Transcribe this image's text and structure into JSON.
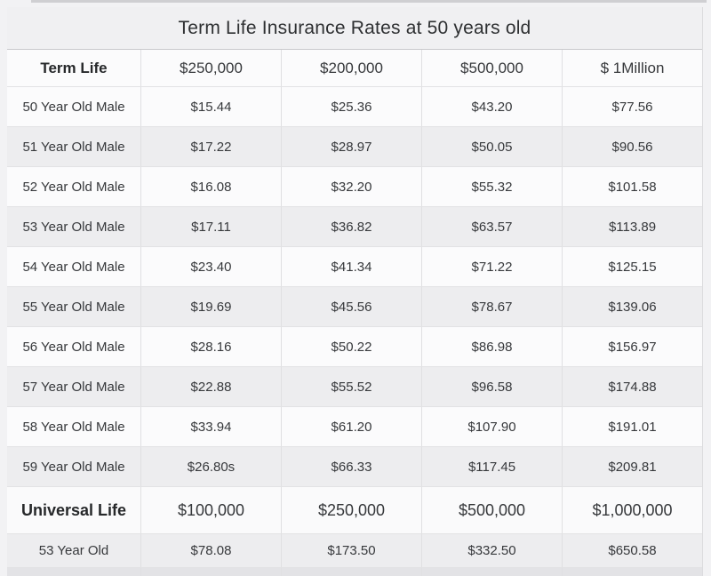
{
  "title": "Term Life Insurance Rates at 50 years old",
  "term_table": {
    "header": {
      "label": "Term Life",
      "columns": [
        "$250,000",
        "$200,000",
        "$500,000",
        "$ 1Million"
      ]
    },
    "rows": [
      {
        "label": "50 Year Old Male",
        "values": [
          "$15.44",
          "$25.36",
          "$43.20",
          "$77.56"
        ]
      },
      {
        "label": "51 Year Old Male",
        "values": [
          "$17.22",
          "$28.97",
          "$50.05",
          "$90.56"
        ]
      },
      {
        "label": "52 Year Old Male",
        "values": [
          "$16.08",
          "$32.20",
          "$55.32",
          "$101.58"
        ]
      },
      {
        "label": "53 Year Old Male",
        "values": [
          "$17.11",
          "$36.82",
          "$63.57",
          "$113.89"
        ]
      },
      {
        "label": "54 Year Old Male",
        "values": [
          "$23.40",
          "$41.34",
          "$71.22",
          "$125.15"
        ]
      },
      {
        "label": "55 Year Old Male",
        "values": [
          "$19.69",
          "$45.56",
          "$78.67",
          "$139.06"
        ]
      },
      {
        "label": "56 Year Old Male",
        "values": [
          "$28.16",
          "$50.22",
          "$86.98",
          "$156.97"
        ]
      },
      {
        "label": "57 Year Old Male",
        "values": [
          "$22.88",
          "$55.52",
          "$96.58",
          "$174.88"
        ]
      },
      {
        "label": "58 Year Old Male",
        "values": [
          "$33.94",
          "$61.20",
          "$107.90",
          "$191.01"
        ]
      },
      {
        "label": "59 Year Old Male",
        "values": [
          "$26.80s",
          "$66.33",
          "$117.45",
          "$209.81"
        ]
      }
    ]
  },
  "universal_table": {
    "header": {
      "label": "Universal Life",
      "columns": [
        "$100,000",
        "$250,000",
        "$500,000",
        "$1,000,000"
      ]
    },
    "rows": [
      {
        "label": "53 Year Old",
        "values": [
          "$78.08",
          "$173.50",
          "$332.50",
          "$650.58"
        ]
      }
    ]
  },
  "colors": {
    "title_bg": "#f0f0f2",
    "row_white": "#fbfbfc",
    "row_gray": "#ededef",
    "border": "#e0e0e2",
    "text": "#333538"
  },
  "chart_data": {
    "type": "table",
    "title": "Term Life Insurance Rates at 50 years old",
    "sections": [
      {
        "name": "Term Life",
        "columns": [
          "$250,000",
          "$200,000",
          "$500,000",
          "$ 1Million"
        ],
        "rows": [
          [
            "50 Year Old Male",
            15.44,
            25.36,
            43.2,
            77.56
          ],
          [
            "51 Year Old Male",
            17.22,
            28.97,
            50.05,
            90.56
          ],
          [
            "52 Year Old Male",
            16.08,
            32.2,
            55.32,
            101.58
          ],
          [
            "53 Year Old Male",
            17.11,
            36.82,
            63.57,
            113.89
          ],
          [
            "54 Year Old Male",
            23.4,
            41.34,
            71.22,
            125.15
          ],
          [
            "55 Year Old Male",
            19.69,
            45.56,
            78.67,
            139.06
          ],
          [
            "56 Year Old Male",
            28.16,
            50.22,
            86.98,
            156.97
          ],
          [
            "57 Year Old Male",
            22.88,
            55.52,
            96.58,
            174.88
          ],
          [
            "58 Year Old Male",
            33.94,
            61.2,
            107.9,
            191.01
          ],
          [
            "59 Year Old Male",
            26.8,
            66.33,
            117.45,
            209.81
          ]
        ]
      },
      {
        "name": "Universal Life",
        "columns": [
          "$100,000",
          "$250,000",
          "$500,000",
          "$1,000,000"
        ],
        "rows": [
          [
            "53 Year Old",
            78.08,
            173.5,
            332.5,
            650.58
          ]
        ]
      }
    ]
  }
}
